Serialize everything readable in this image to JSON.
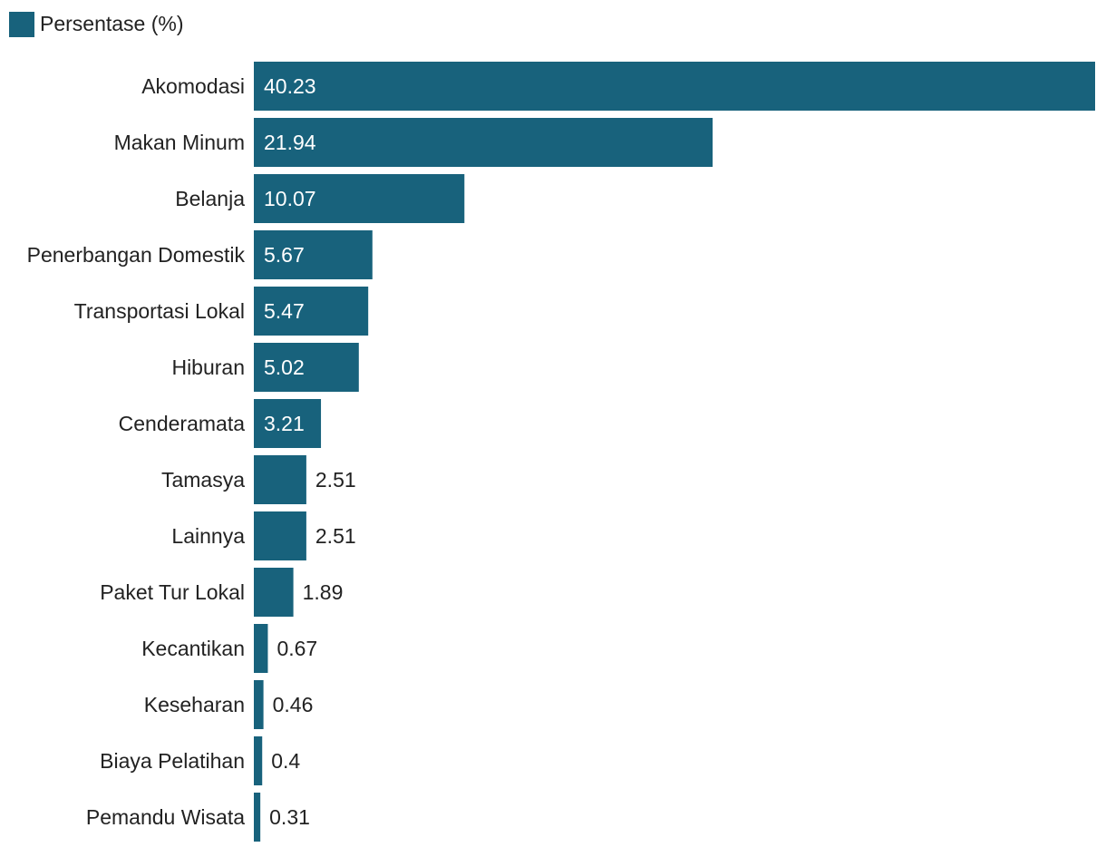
{
  "chart_data": {
    "type": "bar",
    "orientation": "horizontal",
    "legend": {
      "position": "top-left",
      "entries": [
        "Persentase (%)"
      ]
    },
    "grid": false,
    "categories": [
      "Akomodasi",
      "Makan Minum",
      "Belanja",
      "Penerbangan Domestik",
      "Transportasi Lokal",
      "Hiburan",
      "Cenderamata",
      "Tamasya",
      "Lainnya",
      "Paket Tur Lokal",
      "Kecantikan",
      "Keseharan",
      "Biaya Pelatihan",
      "Pemandu Wisata"
    ],
    "series": [
      {
        "name": "Persentase (%)",
        "color": "#18627c",
        "values": [
          40.23,
          21.94,
          10.07,
          5.67,
          5.47,
          5.02,
          3.21,
          2.51,
          2.51,
          1.89,
          0.67,
          0.46,
          0.4,
          0.31
        ]
      }
    ],
    "xlim": [
      0,
      40.23
    ],
    "title": "",
    "xlabel": "",
    "ylabel": ""
  }
}
